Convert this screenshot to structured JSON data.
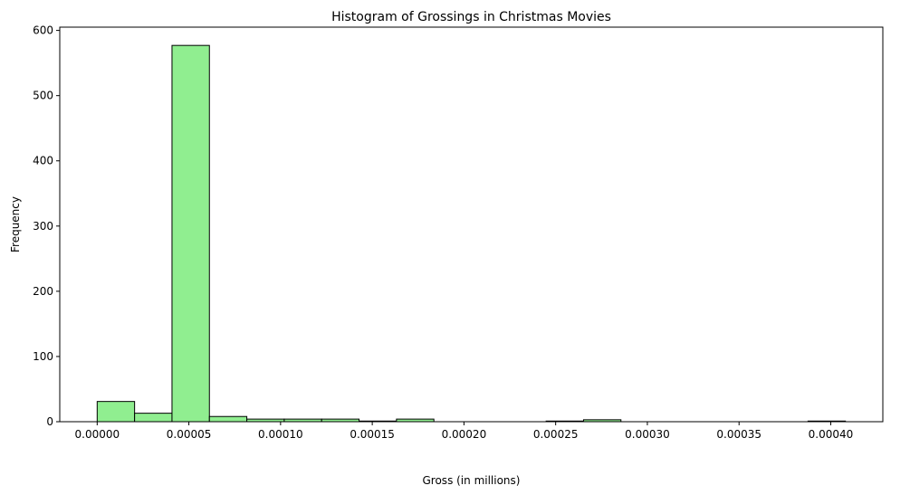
{
  "chart_data": {
    "type": "bar",
    "title": "Histogram of Grossings in Christmas Movies",
    "xlabel": "Gross (in millions)",
    "ylabel": "Frequency",
    "xlim": [
      -2.04e-05,
      0.0004284
    ],
    "ylim": [
      0,
      605
    ],
    "grid": false,
    "bar_color": "#90ee90",
    "edge_color": "#000000",
    "bin_edges": [
      0.0,
      2.04e-05,
      4.08e-05,
      6.12e-05,
      8.16e-05,
      0.000102,
      0.0001224,
      0.0001428,
      0.0001632,
      0.0001836,
      0.000204,
      0.0002244,
      0.0002448,
      0.0002652,
      0.0002856,
      0.000306,
      0.0003264,
      0.0003468,
      0.0003672,
      0.0003876,
      0.000408
    ],
    "values": [
      31,
      13,
      577,
      8,
      4,
      4,
      4,
      1,
      4,
      0,
      0,
      0,
      1,
      3,
      0,
      0,
      0,
      0,
      0,
      1
    ],
    "x_ticks": [
      {
        "value": 0.0,
        "label": "0.00000"
      },
      {
        "value": 5e-05,
        "label": "0.00005"
      },
      {
        "value": 0.0001,
        "label": "0.00010"
      },
      {
        "value": 0.00015,
        "label": "0.00015"
      },
      {
        "value": 0.0002,
        "label": "0.00020"
      },
      {
        "value": 0.00025,
        "label": "0.00025"
      },
      {
        "value": 0.0003,
        "label": "0.00030"
      },
      {
        "value": 0.00035,
        "label": "0.00035"
      },
      {
        "value": 0.0004,
        "label": "0.00040"
      }
    ],
    "y_ticks": [
      {
        "value": 0,
        "label": "0"
      },
      {
        "value": 100,
        "label": "100"
      },
      {
        "value": 200,
        "label": "200"
      },
      {
        "value": 300,
        "label": "300"
      },
      {
        "value": 400,
        "label": "400"
      },
      {
        "value": 500,
        "label": "500"
      },
      {
        "value": 600,
        "label": "600"
      }
    ]
  }
}
